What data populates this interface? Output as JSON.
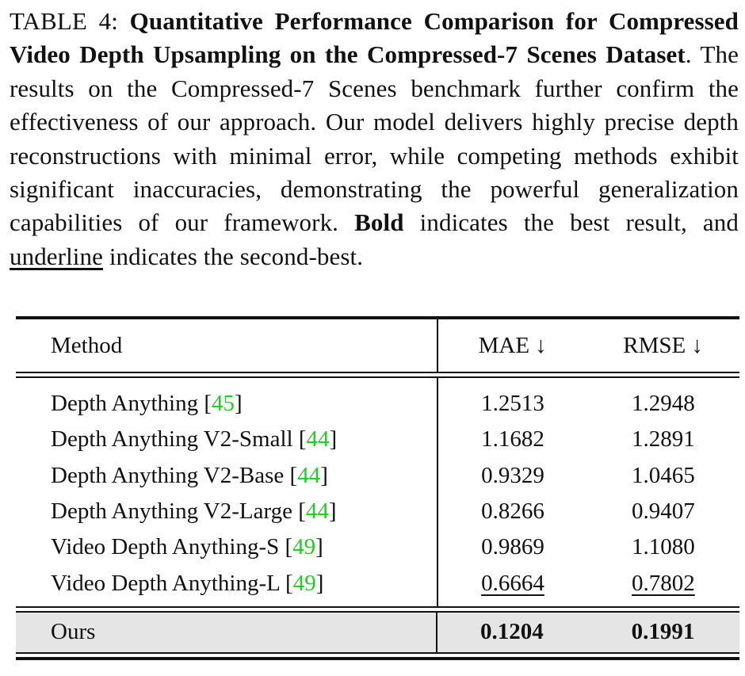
{
  "caption": {
    "label": "TABLE 4:",
    "title": "Quantitative Performance Comparison for Compressed Video Depth Upsampling on the Compressed-7 Scenes Dataset",
    "body_1": ". The results on the Compressed-7 Scenes benchmark further confirm the effectiveness of our approach. Our model delivers highly precise depth reconstructions with minimal error, while competing methods exhibit significant inaccuracies, demonstrating the powerful generalization capabilities of our framework. ",
    "bold_word": "Bold",
    "body_2": " indicates the best result, and ",
    "underline_word": "underline",
    "body_3": " indicates the second-best."
  },
  "table": {
    "headers": {
      "method": "Method",
      "mae": "MAE ↓",
      "rmse": "RMSE ↓"
    },
    "rows": [
      {
        "method": "Depth Anything",
        "ref": "45",
        "mae": "1.2513",
        "rmse": "1.2948"
      },
      {
        "method": "Depth Anything V2-Small",
        "ref": "44",
        "mae": "1.1682",
        "rmse": "1.2891"
      },
      {
        "method": "Depth Anything V2-Base",
        "ref": "44",
        "mae": "0.9329",
        "rmse": "1.0465"
      },
      {
        "method": "Depth Anything V2-Large",
        "ref": "44",
        "mae": "0.8266",
        "rmse": "0.9407"
      },
      {
        "method": "Video Depth Anything-S",
        "ref": "49",
        "mae": "0.9869",
        "rmse": "1.1080"
      },
      {
        "method": "Video Depth Anything-L",
        "ref": "49",
        "mae": "0.6664",
        "rmse": "0.7802"
      }
    ],
    "ours": {
      "method": "Ours",
      "mae": "0.1204",
      "rmse": "0.1991"
    }
  }
}
